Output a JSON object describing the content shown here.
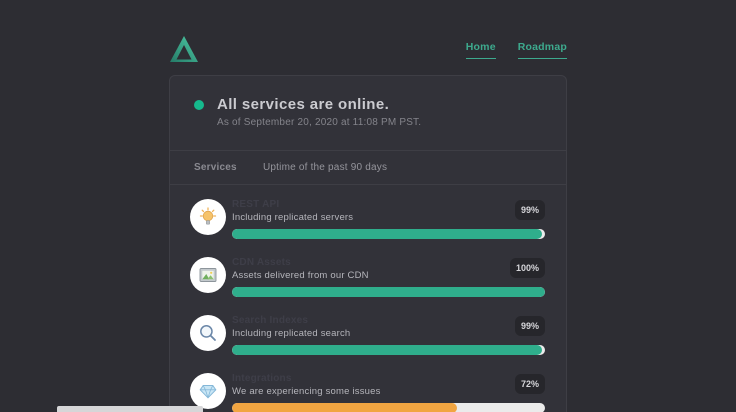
{
  "header": {
    "nav": [
      {
        "label": "Home"
      },
      {
        "label": "Roadmap"
      }
    ]
  },
  "status": {
    "headline": "All services are online.",
    "timestamp": "As of September 20, 2020 at 11:08 PM PST."
  },
  "table": {
    "col_services": "Services",
    "col_uptime": "Uptime of the past 90 days"
  },
  "services": {
    "rows": [
      {
        "icon": "lightbulb-icon",
        "title": "REST API",
        "description": "Including replicated servers",
        "uptime": 99,
        "uptime_label": "99%",
        "status": "operational",
        "bar_color": "#2fae8c"
      },
      {
        "icon": "framed-picture-icon",
        "title": "CDN Assets",
        "description": "Assets delivered from our CDN",
        "uptime": 100,
        "uptime_label": "100%",
        "status": "operational",
        "bar_color": "#2fae8c"
      },
      {
        "icon": "magnifier-icon",
        "title": "Search Indexes",
        "description": "Including replicated search",
        "uptime": 99,
        "uptime_label": "99%",
        "status": "operational",
        "bar_color": "#2fae8c"
      },
      {
        "icon": "gem-icon",
        "title": "Integrations",
        "description": "We are experiencing some issues",
        "uptime": 72,
        "uptime_label": "72%",
        "status": "degraded",
        "bar_color": "#f1a541"
      }
    ]
  },
  "colors": {
    "accent_teal": "#3daa8e",
    "online_dot": "#16b98d",
    "bar_green": "#2fae8c",
    "bar_orange": "#f1a541",
    "bar_track": "#ebebeb",
    "page_bg": "#2d2d33",
    "card_bg": "#323239"
  }
}
